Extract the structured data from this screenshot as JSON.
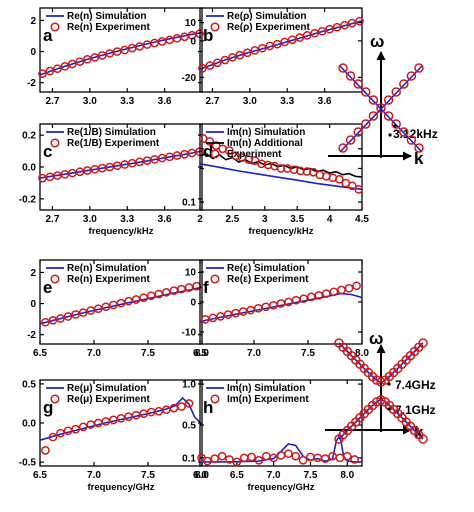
{
  "figure": {
    "colors": {
      "simulation": "#2020c8",
      "experiment": "#cc1a1a",
      "additional": "#000000"
    },
    "dispersion": [
      {
        "omega": "ω",
        "k": "k",
        "labels": [
          "3.12kHz"
        ]
      },
      {
        "omega": "ω",
        "k": "k",
        "labels": [
          "7.4GHz",
          "7.1GHz"
        ]
      }
    ]
  },
  "chart_data": [
    {
      "id": "a",
      "type": "line",
      "panel_label": "a",
      "xlim": [
        2.6,
        3.9
      ],
      "ylim": [
        -2.6,
        2.8
      ],
      "xticks": [
        2.7,
        3.0,
        3.3,
        3.6
      ],
      "xticklabels": [
        "2.7",
        "3.0",
        "3.3",
        "3.6"
      ],
      "yticks": [
        -2,
        0,
        2
      ],
      "yticklabels": [
        "-2",
        "0",
        "2"
      ],
      "xlabel": "",
      "series": [
        {
          "name": "Re(n) Simulation",
          "kind": "line",
          "color": "#2020c8",
          "x": [
            2.6,
            2.8,
            3.0,
            3.2,
            3.4,
            3.6,
            3.8,
            3.9
          ],
          "y": [
            -1.5,
            -0.95,
            -0.45,
            -0.02,
            0.38,
            0.75,
            1.08,
            1.22
          ]
        },
        {
          "name": "Re(n) Experiment",
          "kind": "markers",
          "color": "#cc1a1a",
          "x": [
            2.62,
            2.68,
            2.74,
            2.8,
            2.86,
            2.92,
            2.98,
            3.04,
            3.1,
            3.16,
            3.22,
            3.28,
            3.34,
            3.4,
            3.46,
            3.52,
            3.58,
            3.64,
            3.7,
            3.76,
            3.82,
            3.88
          ],
          "y": [
            -1.42,
            -1.25,
            -1.1,
            -0.95,
            -0.8,
            -0.65,
            -0.5,
            -0.38,
            -0.25,
            -0.12,
            0.0,
            0.1,
            0.22,
            0.33,
            0.45,
            0.55,
            0.65,
            0.75,
            0.85,
            0.95,
            1.05,
            1.15
          ]
        }
      ]
    },
    {
      "id": "b",
      "type": "line",
      "panel_label": "b",
      "xlim": [
        2.6,
        3.9
      ],
      "ylim": [
        -28,
        18
      ],
      "xticks": [
        2.7,
        3.0,
        3.3,
        3.6
      ],
      "xticklabels": [
        "2.7",
        "3.0",
        "3.3",
        "3.6"
      ],
      "yticks": [
        -20,
        0,
        10
      ],
      "yticklabels": [
        "-20",
        "0",
        "10"
      ],
      "xlabel": "",
      "series": [
        {
          "name": "Re(ρ) Simulation",
          "kind": "line",
          "color": "#2020c8",
          "x": [
            2.6,
            2.8,
            3.0,
            3.2,
            3.4,
            3.6,
            3.8,
            3.9
          ],
          "y": [
            -15.5,
            -10.5,
            -6.2,
            -2.5,
            1.5,
            5.5,
            9.0,
            11.0
          ]
        },
        {
          "name": "Re(ρ) Experiment",
          "kind": "markers",
          "color": "#cc1a1a",
          "x": [
            2.62,
            2.68,
            2.74,
            2.8,
            2.86,
            2.92,
            2.98,
            3.04,
            3.1,
            3.16,
            3.22,
            3.28,
            3.34,
            3.4,
            3.46,
            3.52,
            3.58,
            3.64,
            3.7,
            3.76,
            3.82,
            3.88
          ],
          "y": [
            -15.0,
            -13.5,
            -12.0,
            -10.5,
            -9.0,
            -7.8,
            -6.5,
            -5.2,
            -4.0,
            -2.8,
            -1.8,
            -0.6,
            0.6,
            1.8,
            3.0,
            4.2,
            5.3,
            6.4,
            7.5,
            8.6,
            9.7,
            10.8
          ]
        }
      ]
    },
    {
      "id": "c",
      "type": "line",
      "panel_label": "c",
      "xlim": [
        2.6,
        3.9
      ],
      "ylim": [
        -0.27,
        0.27
      ],
      "xticks": [
        2.7,
        3.0,
        3.3,
        3.6
      ],
      "xticklabels": [
        "2.7",
        "3.0",
        "3.3",
        "3.6"
      ],
      "yticks": [
        -0.2,
        0.0,
        0.2
      ],
      "yticklabels": [
        "-0.2",
        "0.0",
        "0.2"
      ],
      "xlabel": "frequency/kHz",
      "series": [
        {
          "name": "Re(1/B) Simulation",
          "kind": "line",
          "color": "#2020c8",
          "x": [
            2.6,
            2.8,
            3.0,
            3.2,
            3.4,
            3.6,
            3.8,
            3.9
          ],
          "y": [
            -0.07,
            -0.045,
            -0.02,
            0.005,
            0.03,
            0.058,
            0.085,
            0.1
          ]
        },
        {
          "name": "Re(1/B) Experiment",
          "kind": "markers",
          "color": "#cc1a1a",
          "x": [
            2.62,
            2.68,
            2.74,
            2.8,
            2.86,
            2.92,
            2.98,
            3.04,
            3.1,
            3.16,
            3.22,
            3.28,
            3.34,
            3.4,
            3.46,
            3.52,
            3.58,
            3.64,
            3.7,
            3.76,
            3.82,
            3.88
          ],
          "y": [
            -0.07,
            -0.062,
            -0.054,
            -0.046,
            -0.038,
            -0.03,
            -0.022,
            -0.014,
            -0.007,
            0.0,
            0.008,
            0.016,
            0.024,
            0.032,
            0.04,
            0.048,
            0.056,
            0.064,
            0.072,
            0.08,
            0.088,
            0.096
          ]
        }
      ]
    },
    {
      "id": "d",
      "type": "line",
      "panel_label": "d",
      "yscale": "log",
      "xlim": [
        2.0,
        4.5
      ],
      "ylim": [
        0.085,
        0.5
      ],
      "xticks": [
        2.0,
        2.5,
        3.0,
        3.5,
        4.0,
        4.5
      ],
      "xticklabels": [
        "2",
        "2.5",
        "3",
        "3.5",
        "4",
        "4.5"
      ],
      "yticks": [
        0.1,
        0.2,
        0.3,
        0.4
      ],
      "yticklabels": [
        "0.1",
        "",
        "",
        ""
      ],
      "xlabel": "frequency/kHz",
      "series": [
        {
          "name": "Im(n) Simulation",
          "kind": "line",
          "color": "#2020c8",
          "x": [
            2.0,
            2.3,
            2.6,
            2.9,
            3.2,
            3.5,
            3.8,
            4.1,
            4.5
          ],
          "y": [
            0.22,
            0.205,
            0.19,
            0.178,
            0.167,
            0.157,
            0.147,
            0.139,
            0.13
          ]
        },
        {
          "name": "Im(n) Additional",
          "kind": "line",
          "color": "#000000",
          "x": [
            2.0,
            2.1,
            2.2,
            2.3,
            2.4,
            2.5,
            2.6,
            2.7,
            2.8,
            2.9,
            3.0,
            3.1,
            3.2,
            3.3,
            3.4,
            3.5,
            3.6,
            3.7,
            3.8,
            3.9,
            4.0,
            4.1,
            4.2,
            4.3,
            4.4,
            4.5
          ],
          "y": [
            0.26,
            0.27,
            0.245,
            0.265,
            0.24,
            0.25,
            0.228,
            0.24,
            0.222,
            0.23,
            0.215,
            0.222,
            0.208,
            0.214,
            0.2,
            0.207,
            0.195,
            0.2,
            0.188,
            0.193,
            0.182,
            0.187,
            0.176,
            0.18,
            0.17,
            0.168
          ]
        },
        {
          "name": "Experiment",
          "kind": "markers",
          "color": "#cc1a1a",
          "x": [
            2.05,
            2.15,
            2.25,
            2.35,
            2.45,
            2.55,
            2.65,
            2.75,
            2.85,
            2.95,
            3.05,
            3.15,
            3.25,
            3.35,
            3.45,
            3.55,
            3.65,
            3.75,
            3.85,
            3.95,
            4.05,
            4.15,
            4.25,
            4.35,
            4.45
          ],
          "y": [
            0.37,
            0.35,
            0.32,
            0.3,
            0.29,
            0.26,
            0.25,
            0.24,
            0.235,
            0.22,
            0.215,
            0.21,
            0.2,
            0.2,
            0.195,
            0.19,
            0.188,
            0.185,
            0.175,
            0.17,
            0.165,
            0.16,
            0.148,
            0.14,
            0.13
          ]
        }
      ]
    },
    {
      "id": "e",
      "type": "line",
      "panel_label": "e",
      "xlim": [
        6.5,
        8.0
      ],
      "ylim": [
        -2.6,
        2.8
      ],
      "xticks": [
        6.5,
        7.0,
        7.5,
        8.0
      ],
      "xticklabels": [
        "6.5",
        "7.0",
        "7.5",
        "8.0"
      ],
      "yticks": [
        -2,
        0,
        2
      ],
      "yticklabels": [
        "-2",
        "0",
        "2"
      ],
      "xlabel": "",
      "series": [
        {
          "name": "Re(n) Simulation",
          "kind": "line",
          "color": "#2020c8",
          "x": [
            6.5,
            6.7,
            6.9,
            7.1,
            7.3,
            7.5,
            7.7,
            7.9,
            8.0
          ],
          "y": [
            -1.3,
            -0.95,
            -0.6,
            -0.28,
            0.02,
            0.32,
            0.62,
            0.9,
            1.05
          ]
        },
        {
          "name": "Re(n) Experiment",
          "kind": "markers",
          "color": "#cc1a1a",
          "x": [
            6.55,
            6.62,
            6.69,
            6.76,
            6.83,
            6.9,
            6.97,
            7.04,
            7.11,
            7.18,
            7.25,
            7.32,
            7.39,
            7.46,
            7.53,
            7.6,
            7.67,
            7.74,
            7.81,
            7.88,
            7.95
          ],
          "y": [
            -1.2,
            -1.08,
            -0.96,
            -0.83,
            -0.7,
            -0.58,
            -0.45,
            -0.33,
            -0.21,
            -0.09,
            0.03,
            0.15,
            0.26,
            0.38,
            0.5,
            0.61,
            0.72,
            0.83,
            0.93,
            1.03,
            1.12
          ]
        }
      ]
    },
    {
      "id": "f",
      "type": "line",
      "panel_label": "f",
      "xlim": [
        6.5,
        8.0
      ],
      "ylim": [
        -14,
        14
      ],
      "xticks": [
        6.5,
        7.0,
        7.5,
        8.0
      ],
      "xticklabels": [
        "6.5",
        "7.0",
        "7.5",
        "8.0"
      ],
      "yticks": [
        -10,
        0,
        10
      ],
      "yticklabels": [
        "-10",
        "0",
        "10"
      ],
      "xlabel": "",
      "series": [
        {
          "name": "Re(ε) Simulation",
          "kind": "line",
          "color": "#2020c8",
          "x": [
            6.5,
            6.7,
            6.9,
            7.1,
            7.3,
            7.5,
            7.7,
            7.8,
            7.9,
            8.0
          ],
          "y": [
            -6.5,
            -5.0,
            -3.6,
            -2.2,
            -0.8,
            0.6,
            2.0,
            2.8,
            2.5,
            1.5
          ]
        },
        {
          "name": "Re(ε) Experiment",
          "kind": "markers",
          "color": "#cc1a1a",
          "x": [
            6.55,
            6.62,
            6.69,
            6.76,
            6.83,
            6.9,
            6.97,
            7.04,
            7.11,
            7.18,
            7.25,
            7.32,
            7.39,
            7.46,
            7.53,
            7.6,
            7.67,
            7.74,
            7.81,
            7.88,
            7.95
          ],
          "y": [
            -5.8,
            -5.3,
            -4.8,
            -4.2,
            -3.7,
            -3.2,
            -2.7,
            -2.1,
            -1.6,
            -1.1,
            -0.5,
            0.0,
            0.6,
            1.1,
            1.7,
            2.2,
            2.8,
            3.4,
            4.0,
            4.6,
            5.4
          ]
        }
      ]
    },
    {
      "id": "g",
      "type": "line",
      "panel_label": "g",
      "xlim": [
        6.5,
        8.0
      ],
      "ylim": [
        -0.55,
        0.55
      ],
      "xticks": [
        6.5,
        7.0,
        7.5,
        8.0
      ],
      "xticklabels": [
        "6.5",
        "7.0",
        "7.5",
        "8.0"
      ],
      "yticks": [
        -0.5,
        0.0,
        0.5
      ],
      "yticklabels": [
        "-0.5",
        "0.0",
        "0.5"
      ],
      "xlabel": "frequency/GHz",
      "series": [
        {
          "name": "Re(μ) Simulation",
          "kind": "line",
          "color": "#2020c8",
          "x": [
            6.5,
            6.7,
            6.9,
            7.1,
            7.3,
            7.5,
            7.65,
            7.75,
            7.82,
            7.88,
            7.93,
            8.0
          ],
          "y": [
            -0.22,
            -0.14,
            -0.07,
            0.0,
            0.06,
            0.12,
            0.17,
            0.22,
            0.32,
            0.24,
            0.08,
            -0.02
          ]
        },
        {
          "name": "Re(μ) Experiment",
          "kind": "markers",
          "color": "#cc1a1a",
          "x": [
            6.55,
            6.62,
            6.69,
            6.76,
            6.83,
            6.9,
            6.97,
            7.04,
            7.11,
            7.18,
            7.25,
            7.32,
            7.39,
            7.46,
            7.53,
            7.6,
            7.67,
            7.74,
            7.81,
            7.88
          ],
          "y": [
            -0.35,
            -0.18,
            -0.13,
            -0.1,
            -0.08,
            -0.05,
            -0.02,
            0.0,
            0.02,
            0.04,
            0.06,
            0.08,
            0.1,
            0.12,
            0.14,
            0.15,
            0.17,
            0.19,
            0.21,
            0.25
          ]
        }
      ]
    },
    {
      "id": "h",
      "type": "line",
      "panel_label": "h",
      "xlim": [
        6.0,
        8.2
      ],
      "ylim": [
        0.0,
        1.05
      ],
      "xticks": [
        6.0,
        6.5,
        7.0,
        7.5,
        8.0
      ],
      "xticklabels": [
        "6.0",
        "6.5",
        "7.0",
        "7.5",
        "8.0"
      ],
      "yticks": [
        0.1,
        0.5,
        1.0
      ],
      "yticklabels": [
        "0.1",
        "0.5",
        "1.0"
      ],
      "xlabel": "frequency/GHz",
      "series": [
        {
          "name": "Im(n) Simulation",
          "kind": "line",
          "color": "#2020c8",
          "x": [
            6.0,
            6.4,
            6.8,
            7.0,
            7.1,
            7.2,
            7.3,
            7.4,
            7.5,
            7.6,
            7.7,
            7.8,
            7.85,
            7.9,
            7.95,
            8.0,
            8.1,
            8.2
          ],
          "y": [
            0.05,
            0.05,
            0.06,
            0.09,
            0.18,
            0.27,
            0.25,
            0.12,
            0.07,
            0.09,
            0.06,
            0.08,
            0.3,
            0.38,
            0.12,
            0.06,
            0.05,
            0.05
          ]
        },
        {
          "name": "Im(n) Experiment",
          "kind": "markers",
          "color": "#cc1a1a",
          "x": [
            6.02,
            6.1,
            6.2,
            6.3,
            6.4,
            6.5,
            6.6,
            6.7,
            6.8,
            6.9,
            7.0,
            7.1,
            7.2,
            7.3,
            7.4,
            7.5,
            7.6,
            7.7,
            7.8,
            7.9,
            8.0,
            8.1
          ],
          "y": [
            0.1,
            0.06,
            0.09,
            0.12,
            0.08,
            0.05,
            0.1,
            0.11,
            0.07,
            0.12,
            0.1,
            0.13,
            0.15,
            0.12,
            0.07,
            0.11,
            0.1,
            0.09,
            0.12,
            0.1,
            0.12,
            0.08
          ]
        }
      ]
    }
  ]
}
